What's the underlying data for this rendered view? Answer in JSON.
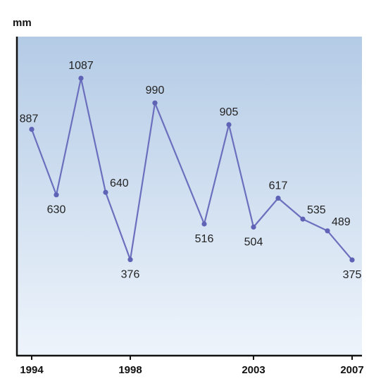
{
  "chart_data": {
    "type": "line",
    "title": "",
    "xlabel": "",
    "ylabel": "mm",
    "x": [
      1994,
      1995,
      1996,
      1997,
      1998,
      1999,
      2001,
      2002,
      2003,
      2004,
      2005,
      2006,
      2007
    ],
    "series": [
      {
        "values": [
          887,
          630,
          1087,
          640,
          376,
          990,
          516,
          905,
          504,
          617,
          535,
          489,
          375
        ],
        "labels": [
          "887",
          "630",
          "1087",
          "640",
          "376",
          "990",
          "516",
          "905",
          "504",
          "617",
          "535",
          "489",
          "375"
        ]
      }
    ],
    "x_tick_labels": [
      "1994",
      "1998",
      "2003",
      "2007"
    ],
    "x_tick_values": [
      1994,
      1998,
      2003,
      2007
    ],
    "ylim": [
      0,
      1250
    ],
    "xlim": [
      1993.4,
      2007.4
    ],
    "grid": false,
    "legend": "none",
    "colors": {
      "line": "#6c6fbd",
      "marker": "#5f63b6",
      "background_top": "#b4cbe6",
      "background_bottom": "#eef4fb",
      "axis": "#111111"
    }
  }
}
